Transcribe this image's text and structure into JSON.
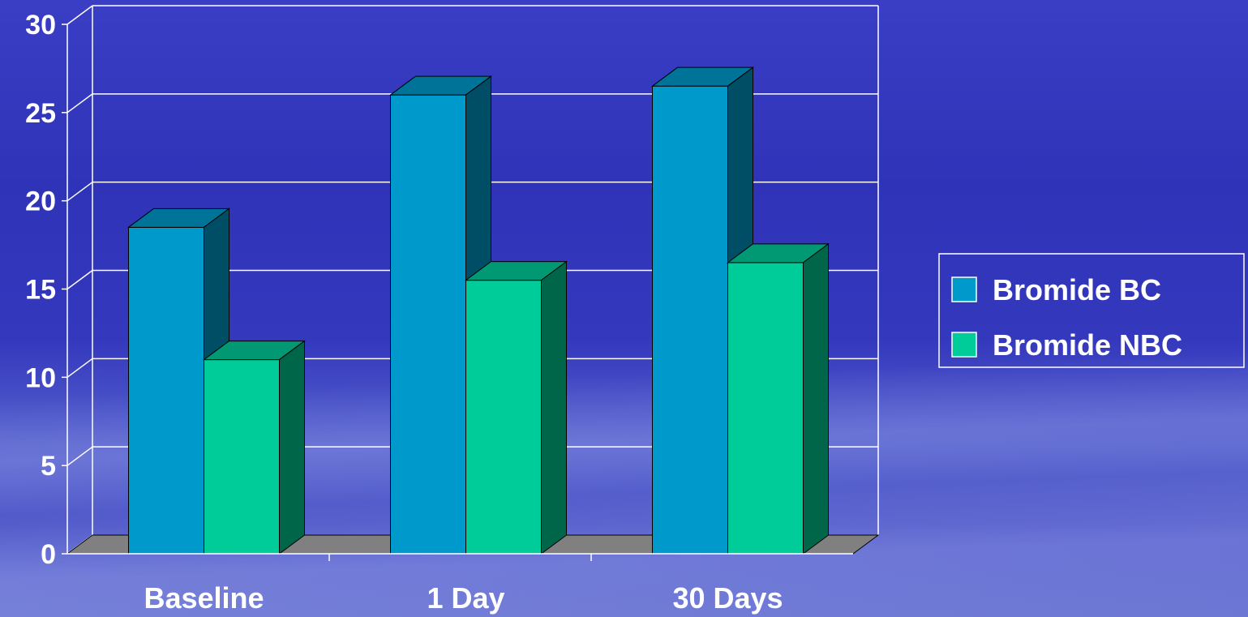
{
  "chart_data": {
    "type": "bar",
    "three_d": true,
    "categories": [
      "Baseline",
      "1 Day",
      "30 Days"
    ],
    "series": [
      {
        "name": "Bromide BC",
        "values": [
          18.5,
          26,
          26.5
        ]
      },
      {
        "name": "Bromide NBC",
        "values": [
          11,
          15.5,
          16.5
        ]
      }
    ],
    "ylim": [
      0,
      30
    ],
    "yticks": [
      "0",
      "5",
      "10",
      "15",
      "20",
      "25",
      "30"
    ],
    "title": "",
    "xlabel": "",
    "ylabel": "",
    "grid": true,
    "legend_position": "right",
    "colors": {
      "series": [
        "#0099cc",
        "#00cc99"
      ],
      "series_top": [
        "#007399",
        "#009973"
      ],
      "series_side": [
        "#004d66",
        "#006649"
      ],
      "floor": "#808080",
      "gridline": "#ffffff",
      "text": "#ffffff"
    }
  }
}
